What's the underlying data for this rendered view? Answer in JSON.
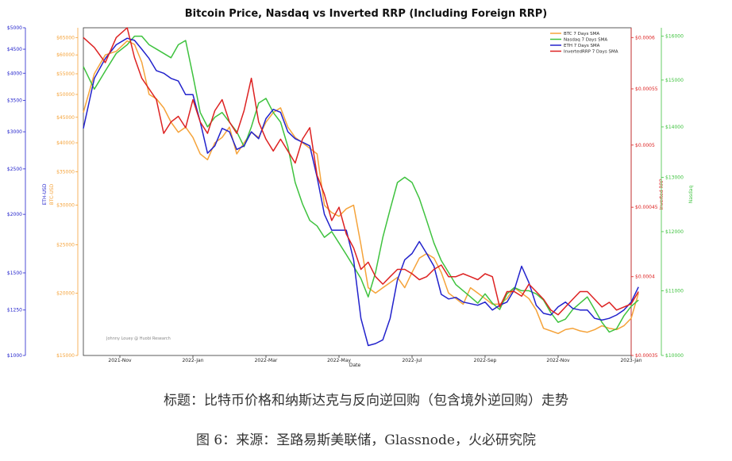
{
  "colors": {
    "btc": "#f5a33a",
    "nasdaq": "#3ec23e",
    "eth": "#2222cc",
    "rrp": "#dd2222",
    "text": "#222222"
  },
  "chart_data": {
    "type": "line",
    "title": "Bitcoin Price, Nasdaq vs Inverted RRP (Including Foreign RRP)",
    "xlabel": "Date",
    "x_ticks": [
      "2021-Nov",
      "2022-Jan",
      "2022-Mar",
      "2022-May",
      "2022-Jul",
      "2022-Sep",
      "2022-Nov",
      "2023-Jan"
    ],
    "x_range": [
      0,
      15
    ],
    "x_tick_positions": [
      1.0,
      3.0,
      5.0,
      7.0,
      9.0,
      11.0,
      13.0,
      15.0
    ],
    "watermark": "Johnny Louey @ Huobi Research",
    "axes": {
      "eth": {
        "label": "ETH-USD",
        "ticks": [
          "$5000",
          "$4500",
          "$4000",
          "$3500",
          "$3000",
          "$2500",
          "$2000",
          "$1500",
          "$1250",
          "$1000"
        ],
        "tick_values": [
          5000,
          4500,
          4000,
          3500,
          3000,
          2500,
          2000,
          1500,
          1250,
          1000
        ],
        "range": [
          1000,
          5000
        ],
        "scale": "log"
      },
      "btc": {
        "label": "BTC-USD",
        "ticks": [
          "$65000",
          "$60000",
          "$55000",
          "$50000",
          "$45000",
          "$40000",
          "$35000",
          "$30000",
          "$25000",
          "$20000",
          "$15000"
        ],
        "tick_values": [
          65000,
          60000,
          55000,
          50000,
          45000,
          40000,
          35000,
          30000,
          25000,
          20000,
          15000
        ],
        "range": [
          15000,
          68000
        ],
        "scale": "log"
      },
      "rrp": {
        "label": "Inverted RRP",
        "ticks": [
          "$0.0006",
          "$0.00055",
          "$0.0005",
          "$0.00045",
          "$0.0004",
          "$0.00035"
        ],
        "tick_values": [
          0.0006,
          0.00055,
          0.0005,
          0.00045,
          0.0004,
          0.00035
        ],
        "range": [
          0.00035,
          0.00061
        ],
        "scale": "log"
      },
      "nasdaq": {
        "label": "Nasdaq",
        "ticks": [
          "$16000",
          "$15000",
          "$14000",
          "$13000",
          "$12000",
          "$11000",
          "$10000"
        ],
        "tick_values": [
          16000,
          15000,
          14000,
          13000,
          12000,
          11000,
          10000
        ],
        "range": [
          10000,
          16200
        ],
        "scale": "log"
      }
    },
    "series": [
      {
        "name": "BTC 7 Days SMA",
        "axis": "btc",
        "x": [
          0.0,
          0.3,
          0.6,
          0.9,
          1.2,
          1.4,
          1.6,
          1.8,
          2.0,
          2.2,
          2.4,
          2.6,
          2.8,
          3.0,
          3.2,
          3.4,
          3.6,
          3.8,
          4.0,
          4.2,
          4.4,
          4.6,
          4.8,
          5.0,
          5.2,
          5.4,
          5.6,
          5.8,
          6.0,
          6.2,
          6.4,
          6.6,
          6.8,
          7.0,
          7.2,
          7.4,
          7.6,
          7.8,
          8.0,
          8.2,
          8.4,
          8.6,
          8.8,
          9.0,
          9.2,
          9.4,
          9.6,
          9.8,
          10.0,
          10.2,
          10.4,
          10.6,
          10.8,
          11.0,
          11.2,
          11.4,
          11.6,
          11.8,
          12.0,
          12.2,
          12.4,
          12.6,
          12.8,
          13.0,
          13.2,
          13.4,
          13.6,
          13.8,
          14.0,
          14.2,
          14.4,
          14.6,
          14.8,
          15.0,
          15.2
        ],
        "y": [
          46000,
          55000,
          60000,
          61000,
          64000,
          63000,
          58000,
          50000,
          49000,
          47000,
          44000,
          42000,
          43000,
          41000,
          38000,
          37000,
          40000,
          41000,
          43000,
          38000,
          40000,
          42000,
          41000,
          44000,
          46000,
          47000,
          43000,
          41000,
          40000,
          39000,
          38000,
          30000,
          29000,
          28500,
          29500,
          30000,
          25000,
          20500,
          20000,
          20500,
          21000,
          21500,
          20500,
          22000,
          23500,
          24000,
          23500,
          22000,
          20000,
          19500,
          19000,
          20500,
          20000,
          19500,
          19000,
          19000,
          19500,
          20500,
          20000,
          19500,
          18500,
          17000,
          16800,
          16600,
          16900,
          17000,
          16800,
          16700,
          16900,
          17200,
          17000,
          16900,
          17200,
          17800,
          20000
        ]
      },
      {
        "name": "Nasdaq 7 Days SMA",
        "axis": "nasdaq",
        "x": [
          0.0,
          0.3,
          0.6,
          0.9,
          1.2,
          1.4,
          1.6,
          1.8,
          2.0,
          2.2,
          2.4,
          2.6,
          2.8,
          3.0,
          3.2,
          3.4,
          3.6,
          3.8,
          4.0,
          4.2,
          4.4,
          4.6,
          4.8,
          5.0,
          5.2,
          5.4,
          5.6,
          5.8,
          6.0,
          6.2,
          6.4,
          6.6,
          6.8,
          7.0,
          7.2,
          7.4,
          7.6,
          7.8,
          8.0,
          8.2,
          8.4,
          8.6,
          8.8,
          9.0,
          9.2,
          9.4,
          9.6,
          9.8,
          10.0,
          10.2,
          10.4,
          10.6,
          10.8,
          11.0,
          11.2,
          11.4,
          11.6,
          11.8,
          12.0,
          12.2,
          12.4,
          12.6,
          12.8,
          13.0,
          13.2,
          13.4,
          13.6,
          13.8,
          14.0,
          14.2,
          14.4,
          14.6,
          14.8,
          15.0,
          15.2
        ],
        "y": [
          15300,
          14800,
          15200,
          15600,
          15800,
          16000,
          16000,
          15800,
          15700,
          15600,
          15500,
          15800,
          15900,
          15100,
          14300,
          14000,
          14200,
          14300,
          14100,
          13900,
          13600,
          14000,
          14500,
          14600,
          14300,
          14100,
          13600,
          12900,
          12500,
          12200,
          12100,
          11900,
          12000,
          11800,
          11600,
          11400,
          11200,
          10900,
          11300,
          11900,
          12400,
          12900,
          13000,
          12900,
          12600,
          12200,
          11800,
          11500,
          11300,
          11100,
          11000,
          10900,
          10800,
          10950,
          10800,
          10700,
          10950,
          11050,
          11000,
          11000,
          10950,
          10850,
          10650,
          10500,
          10550,
          10700,
          10800,
          10900,
          10700,
          10500,
          10350,
          10400,
          10600,
          10750,
          10850
        ]
      },
      {
        "name": "ETH 7 Days SMA",
        "axis": "eth",
        "x": [
          0.0,
          0.3,
          0.6,
          0.9,
          1.2,
          1.4,
          1.6,
          1.8,
          2.0,
          2.2,
          2.4,
          2.6,
          2.8,
          3.0,
          3.2,
          3.4,
          3.6,
          3.8,
          4.0,
          4.2,
          4.4,
          4.6,
          4.8,
          5.0,
          5.2,
          5.4,
          5.6,
          5.8,
          6.0,
          6.2,
          6.4,
          6.6,
          6.8,
          7.0,
          7.2,
          7.4,
          7.6,
          7.8,
          8.0,
          8.2,
          8.4,
          8.6,
          8.8,
          9.0,
          9.2,
          9.4,
          9.6,
          9.8,
          10.0,
          10.2,
          10.4,
          10.6,
          10.8,
          11.0,
          11.2,
          11.4,
          11.6,
          11.8,
          12.0,
          12.2,
          12.4,
          12.6,
          12.8,
          13.0,
          13.2,
          13.4,
          13.6,
          13.8,
          14.0,
          14.2,
          14.4,
          14.6,
          14.8,
          15.0,
          15.2
        ],
        "y": [
          3050,
          3900,
          4300,
          4600,
          4750,
          4700,
          4500,
          4300,
          4050,
          4000,
          3900,
          3850,
          3600,
          3600,
          3150,
          2700,
          2800,
          3050,
          3000,
          2750,
          2800,
          3000,
          2900,
          3200,
          3350,
          3300,
          3000,
          2900,
          2850,
          2800,
          2400,
          2000,
          1850,
          1850,
          1850,
          1600,
          1200,
          1050,
          1060,
          1080,
          1200,
          1450,
          1600,
          1650,
          1750,
          1650,
          1550,
          1350,
          1320,
          1330,
          1300,
          1290,
          1280,
          1300,
          1250,
          1280,
          1300,
          1380,
          1550,
          1430,
          1280,
          1230,
          1220,
          1270,
          1300,
          1260,
          1250,
          1250,
          1200,
          1190,
          1200,
          1220,
          1250,
          1300,
          1400
        ]
      },
      {
        "name": "InvertedRRP 7 Days SMA",
        "axis": "rrp",
        "x": [
          0.0,
          0.3,
          0.6,
          0.9,
          1.2,
          1.4,
          1.6,
          1.8,
          2.0,
          2.2,
          2.4,
          2.6,
          2.8,
          3.0,
          3.2,
          3.4,
          3.6,
          3.8,
          4.0,
          4.2,
          4.4,
          4.6,
          4.8,
          5.0,
          5.2,
          5.4,
          5.6,
          5.8,
          6.0,
          6.2,
          6.4,
          6.6,
          6.8,
          7.0,
          7.2,
          7.4,
          7.6,
          7.8,
          8.0,
          8.2,
          8.4,
          8.6,
          8.8,
          9.0,
          9.2,
          9.4,
          9.6,
          9.8,
          10.0,
          10.2,
          10.4,
          10.6,
          10.8,
          11.0,
          11.2,
          11.4,
          11.6,
          11.8,
          12.0,
          12.2,
          12.4,
          12.6,
          12.8,
          13.0,
          13.2,
          13.4,
          13.6,
          13.8,
          14.0,
          14.2,
          14.4,
          14.6,
          14.8,
          15.0,
          15.2
        ],
        "y": [
          0.0006,
          0.00059,
          0.000575,
          0.0006,
          0.00061,
          0.00058,
          0.00056,
          0.00055,
          0.00054,
          0.00051,
          0.00052,
          0.000525,
          0.000515,
          0.00054,
          0.00052,
          0.00051,
          0.00053,
          0.00054,
          0.00052,
          0.00051,
          0.00053,
          0.00056,
          0.00052,
          0.000505,
          0.000495,
          0.000505,
          0.000495,
          0.000485,
          0.000505,
          0.000515,
          0.000475,
          0.00046,
          0.00044,
          0.00045,
          0.00043,
          0.00042,
          0.000405,
          0.00041,
          0.0004,
          0.000395,
          0.0004,
          0.000405,
          0.000405,
          0.000402,
          0.000398,
          0.0004,
          0.000405,
          0.000408,
          0.0004,
          0.0004,
          0.000402,
          0.0004,
          0.000398,
          0.000402,
          0.0004,
          0.00038,
          0.00039,
          0.00039,
          0.000387,
          0.000395,
          0.00039,
          0.000385,
          0.000378,
          0.000375,
          0.00038,
          0.000385,
          0.00039,
          0.00039,
          0.000385,
          0.00038,
          0.000383,
          0.000378,
          0.00038,
          0.000382,
          0.00039
        ]
      }
    ]
  },
  "caption": {
    "line1": "标题：比特币价格和纳斯达克与反向逆回购（包含境外逆回购）走势",
    "line2": "图 6：来源：圣路易斯美联储，Glassnode，火必研究院"
  }
}
